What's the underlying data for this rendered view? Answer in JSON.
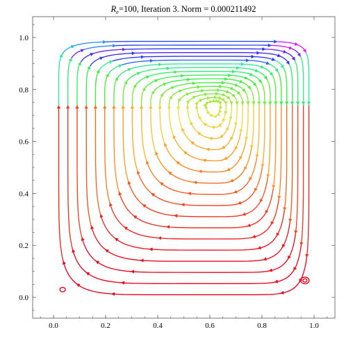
{
  "chart_data": {
    "type": "streamplot",
    "title": {
      "symbol": "R",
      "subscript": "e",
      "rest": "=100, Iteration 3. Norm = 0.000211492"
    },
    "xlim": [
      -0.08,
      1.08
    ],
    "ylim": [
      -0.08,
      1.08
    ],
    "x_ticks": [
      {
        "value": 0.0,
        "label": "0.0"
      },
      {
        "value": 0.2,
        "label": "0.2"
      },
      {
        "value": 0.4,
        "label": "0.4"
      },
      {
        "value": 0.6,
        "label": "0.6"
      },
      {
        "value": 0.8,
        "label": "0.8"
      },
      {
        "value": 1.0,
        "label": "1.0"
      }
    ],
    "y_ticks": [
      {
        "value": 0.0,
        "label": "0.0"
      },
      {
        "value": 0.2,
        "label": "0.2"
      },
      {
        "value": 0.4,
        "label": "0.4"
      },
      {
        "value": 0.6,
        "label": "0.6"
      },
      {
        "value": 0.8,
        "label": "0.8"
      },
      {
        "value": 1.0,
        "label": "1.0"
      }
    ],
    "vortex_center": [
      0.62,
      0.74
    ],
    "rotation": "clockwise",
    "grid": false,
    "legend": "none",
    "color_scale": [
      "#e8001c",
      "#ff8a1e",
      "#f2e040",
      "#3cf03c",
      "#1ee6f0",
      "#2a2af5",
      "#ff19ff"
    ]
  }
}
